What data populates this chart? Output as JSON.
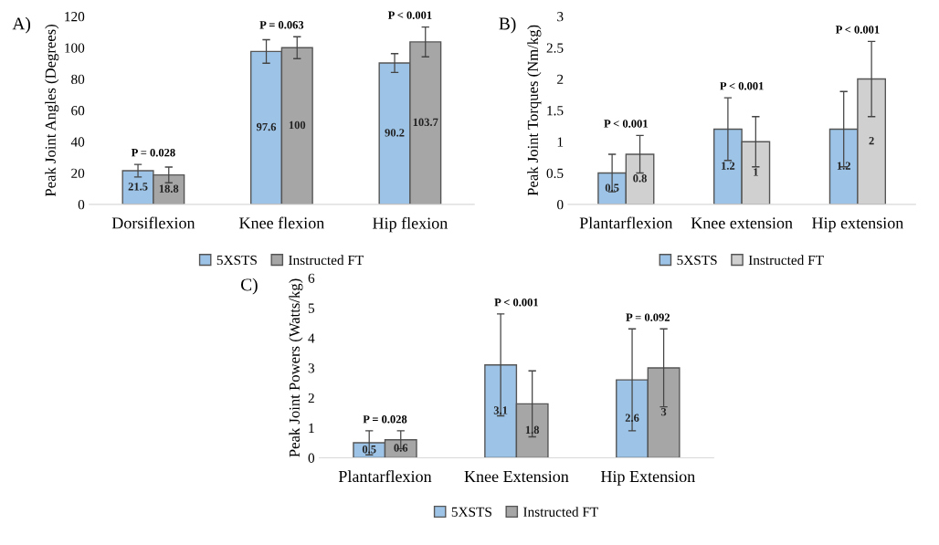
{
  "chart_data": [
    {
      "type": "bar",
      "ylabel": "Peak Joint Angles (Degrees)",
      "categories": [
        "Dorsiflexion",
        "Knee flexion",
        "Hip flexion"
      ],
      "series": [
        {
          "name": "5XSTS",
          "color": "#9dc3e6",
          "values": [
            21.5,
            97.6,
            90.2
          ],
          "errors": [
            4,
            7.5,
            6
          ]
        },
        {
          "name": "Instructed FT",
          "color": "#a6a6a6",
          "values": [
            18.8,
            100,
            103.7
          ],
          "errors": [
            5,
            7,
            9.5
          ]
        }
      ],
      "ylim": [
        0,
        120
      ],
      "yticks": [
        0,
        20,
        40,
        60,
        80,
        100,
        120
      ],
      "data_labels": true,
      "legend": "bottom",
      "grid": false,
      "annotations": [
        "A)",
        "P = 0.028",
        "P = 0.063",
        "P < 0.001"
      ]
    },
    {
      "type": "bar",
      "ylabel": "Peak Joint Torques (Nm/kg)",
      "categories": [
        "Plantarflexion",
        "Knee extension",
        "Hip extension"
      ],
      "series": [
        {
          "name": "5XSTS",
          "color": "#9dc3e6",
          "values": [
            0.5,
            1.2,
            1.2
          ],
          "errors": [
            0.3,
            0.5,
            0.6
          ]
        },
        {
          "name": "Instructed FT",
          "color": "#d0d0d0",
          "values": [
            0.8,
            1,
            2
          ],
          "errors": [
            0.3,
            0.4,
            0.6
          ]
        }
      ],
      "ylim": [
        0,
        3
      ],
      "yticks": [
        0,
        0.5,
        1,
        1.5,
        2,
        2.5,
        3
      ],
      "data_labels": true,
      "legend": "bottom",
      "grid": false,
      "annotations": [
        "B)",
        "P < 0.001",
        "P < 0.001",
        "P < 0.001"
      ]
    },
    {
      "type": "bar",
      "ylabel": "Peak Joint Powers (Watts/kg)",
      "categories": [
        "Plantarflexion",
        "Knee Extension",
        "Hip Extension"
      ],
      "series": [
        {
          "name": "5XSTS",
          "color": "#9dc3e6",
          "values": [
            0.5,
            3.1,
            2.6
          ],
          "errors": [
            0.4,
            1.7,
            1.7
          ]
        },
        {
          "name": "Instructed FT",
          "color": "#a6a6a6",
          "values": [
            0.6,
            1.8,
            3
          ],
          "errors": [
            0.3,
            1.1,
            1.3
          ]
        }
      ],
      "ylim": [
        0,
        6
      ],
      "yticks": [
        0,
        1,
        2,
        3,
        4,
        5,
        6
      ],
      "data_labels": true,
      "legend": "bottom",
      "grid": false,
      "annotations": [
        "C)",
        "P = 0.028",
        "P < 0.001",
        "P = 0.092"
      ]
    }
  ]
}
